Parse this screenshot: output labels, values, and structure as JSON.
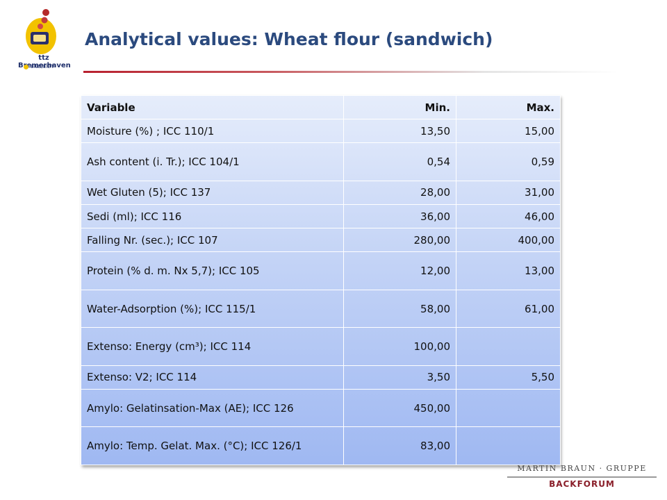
{
  "logo": {
    "org_name": "ttz Bremerhaven",
    "sub_name": "BILB/EIBT"
  },
  "header": {
    "title": "Analytical values: Wheat flour (sandwich)"
  },
  "table": {
    "headers": [
      "Variable",
      "Min.",
      "Max."
    ],
    "rows": [
      {
        "variable": "Moisture (%) ; ICC 110/1",
        "min": "13,50",
        "max": "15,00",
        "tall": false
      },
      {
        "variable": "Ash content (i. Tr.); ICC 104/1",
        "min": "0,54",
        "max": "0,59",
        "tall": true
      },
      {
        "variable": "Wet Gluten (5); ICC 137",
        "min": "28,00",
        "max": "31,00",
        "tall": false
      },
      {
        "variable": "Sedi (ml); ICC 116",
        "min": "36,00",
        "max": "46,00",
        "tall": false
      },
      {
        "variable": "Falling Nr. (sec.); ICC 107",
        "min": "280,00",
        "max": "400,00",
        "tall": false
      },
      {
        "variable": "Protein (% d. m. Nx 5,7); ICC 105",
        "min": "12,00",
        "max": "13,00",
        "tall": true
      },
      {
        "variable": "Water-Adsorption (%); ICC 115/1",
        "min": "58,00",
        "max": "61,00",
        "tall": true
      },
      {
        "variable": "Extenso: Energy (cm³); ICC 114",
        "min": "100,00",
        "max": "",
        "tall": true
      },
      {
        "variable": "Extenso: V2; ICC 114",
        "min": "3,50",
        "max": "5,50",
        "tall": false
      },
      {
        "variable": "Amylo: Gelatinsation-Max (AE); ICC 126",
        "min": "450,00",
        "max": "",
        "tall": true
      },
      {
        "variable": "Amylo: Temp. Gelat. Max. (°C); ICC 126/1",
        "min": "83,00",
        "max": "",
        "tall": true
      }
    ]
  },
  "brand": {
    "group": "MARTIN BRAUN · GRUPPE",
    "forum": "BACKFORUM"
  }
}
